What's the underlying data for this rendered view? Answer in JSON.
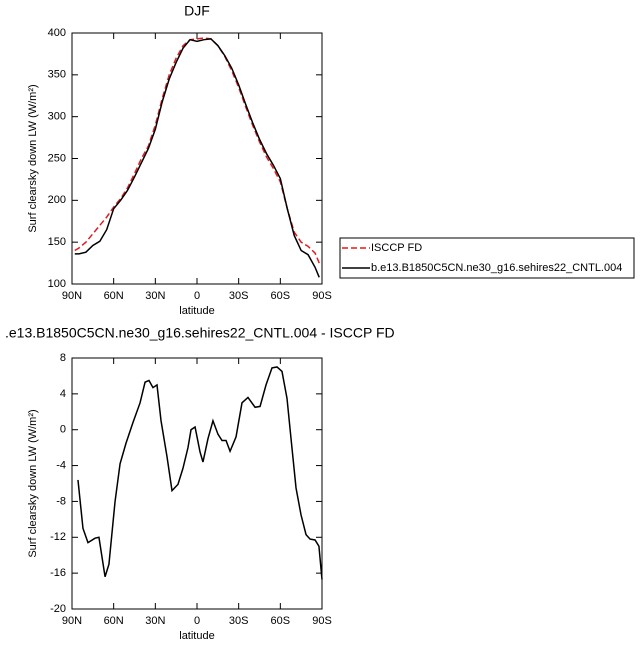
{
  "chart_data": [
    {
      "type": "line",
      "title": "DJF",
      "xlabel": "latitude",
      "ylabel": "Surf clearsky down LW (W/m²)",
      "x": [
        88,
        85,
        80,
        75,
        70,
        65,
        60,
        55,
        50,
        45,
        40,
        35,
        30,
        25,
        20,
        15,
        10,
        5,
        0,
        -5,
        -10,
        -15,
        -20,
        -25,
        -30,
        -35,
        -40,
        -45,
        -50,
        -55,
        -60,
        -65,
        -70,
        -75,
        -80,
        -85,
        -88
      ],
      "series": [
        {
          "name": "ISCCP FD",
          "color": "#e41a1c",
          "linestyle": "dashed",
          "values": [
            140,
            143,
            150,
            160,
            170,
            180,
            192,
            202,
            215,
            232,
            250,
            265,
            290,
            322,
            350,
            370,
            385,
            392,
            393,
            394,
            393,
            385,
            372,
            355,
            335,
            312,
            290,
            270,
            252,
            238,
            222,
            190,
            162,
            150,
            145,
            137,
            125
          ]
        },
        {
          "name": "b.e13.B1850C5CN.ne30_g16.sehires22_CNTL.004",
          "color": "#000000",
          "linestyle": "solid",
          "values": [
            136,
            136,
            138,
            146,
            151,
            165,
            190,
            200,
            212,
            228,
            245,
            262,
            285,
            318,
            345,
            365,
            382,
            392,
            390,
            392,
            393,
            385,
            373,
            358,
            338,
            315,
            293,
            273,
            256,
            242,
            226,
            190,
            158,
            140,
            135,
            120,
            108
          ]
        }
      ],
      "legend": "right",
      "xlim": [
        90,
        -90
      ],
      "ylim": [
        100,
        400
      ],
      "xticks": [
        {
          "value": 90,
          "label": "90N"
        },
        {
          "value": 60,
          "label": "60N"
        },
        {
          "value": 30,
          "label": "30N"
        },
        0,
        {
          "value": -30,
          "label": "30S"
        },
        {
          "value": -60,
          "label": "60S"
        },
        {
          "value": -90,
          "label": "90S"
        }
      ],
      "yticks": [
        100,
        150,
        200,
        250,
        300,
        350,
        400
      ]
    },
    {
      "type": "line",
      "title": ".e13.B1850C5CN.ne30_g16.sehires22_CNTL.004 - ISCCP FD",
      "xlabel": "latitude",
      "ylabel": "Surf clearsky down LW (W/m²)",
      "x": [
        85.7,
        82.1,
        78.5,
        73.4,
        70.6,
        66.2,
        63.4,
        59.0,
        55.4,
        51.1,
        46.1,
        41.0,
        37.4,
        34.6,
        31.7,
        28.8,
        25.9,
        21.6,
        18.0,
        13.7,
        10.1,
        6.5,
        4.3,
        1.4,
        -2.2,
        -4.3,
        -7.9,
        -11.5,
        -15.1,
        -18.0,
        -20.9,
        -23.8,
        -28.1,
        -32.4,
        -36.7,
        -41.8,
        -45.4,
        -49.7,
        -54.0,
        -57.6,
        -61.2,
        -64.8,
        -67.7,
        -71.3,
        -74.9,
        -78.5,
        -81.4,
        -85.0,
        -87.8,
        -90
      ],
      "color": "#000000",
      "values": [
        -5.6,
        -11,
        -12.6,
        -12.1,
        -12,
        -16.4,
        -15,
        -8,
        -3.8,
        -1.5,
        0.8,
        3,
        5.3,
        5.5,
        4.7,
        5,
        1,
        -3,
        -6.8,
        -6.1,
        -4.3,
        -2,
        0,
        0.3,
        -2.5,
        -3.6,
        -1,
        1,
        -0.5,
        -1.2,
        -1.2,
        -2.4,
        -0.8,
        3,
        3.6,
        2.5,
        2.6,
        5,
        6.9,
        7.0,
        6.5,
        3.5,
        -1,
        -6.5,
        -9.5,
        -11.7,
        -12.2,
        -12.3,
        -13,
        -16.7
      ],
      "xlim": [
        90,
        -90
      ],
      "ylim": [
        -20,
        8
      ],
      "xticks": [
        {
          "value": 90,
          "label": "90N"
        },
        {
          "value": 60,
          "label": "60N"
        },
        {
          "value": 30,
          "label": "30N"
        },
        0,
        {
          "value": -30,
          "label": "30S"
        },
        {
          "value": -60,
          "label": "60S"
        },
        {
          "value": -90,
          "label": "90S"
        }
      ],
      "yticks": [
        -20,
        -16,
        -12,
        -8,
        -4,
        0,
        4,
        8
      ]
    }
  ]
}
